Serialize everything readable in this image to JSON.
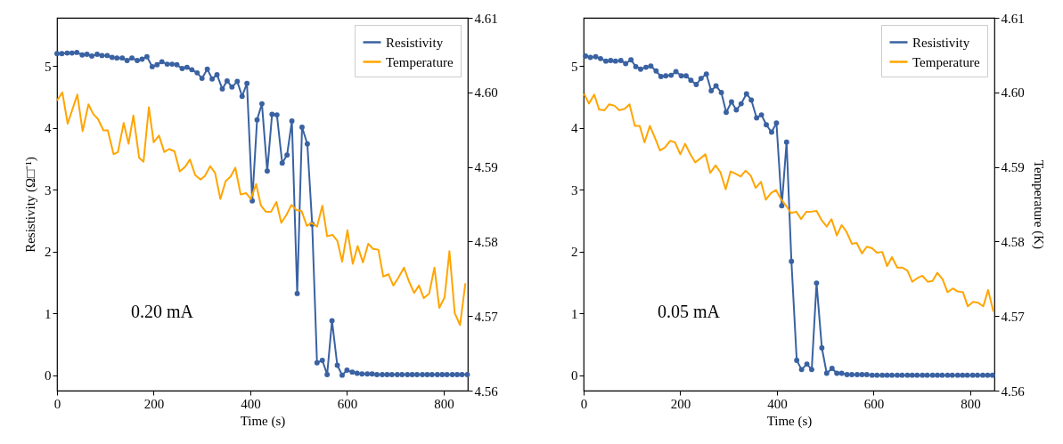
{
  "chart_data": [
    {
      "type": "line",
      "xlabel": "Time (s)",
      "ylabel": "Resistivity (Ω□⁻¹)",
      "annotations": [
        "0.20 mA"
      ],
      "legend": "top right",
      "grid": false,
      "xlim": [
        0,
        850
      ],
      "xticks": [
        0,
        200,
        400,
        600,
        800
      ],
      "ylim": [
        -0.25,
        5.78
      ],
      "yticks": [
        0,
        1,
        2,
        3,
        4,
        5
      ],
      "y2lim": [
        4.56,
        4.61
      ],
      "y2ticks": [
        4.56,
        4.57,
        4.58,
        4.59,
        {
          "value": 4.6,
          "label": "4.60"
        },
        4.61
      ],
      "line_style": "solid",
      "series": [
        {
          "name": "Resistivity",
          "color": "#3a62a2",
          "marker": "circle",
          "x": [
            0,
            10,
            21,
            31,
            41,
            52,
            62,
            72,
            83,
            93,
            104,
            114,
            124,
            135,
            145,
            155,
            166,
            176,
            186,
            197,
            207,
            217,
            228,
            238,
            248,
            259,
            269,
            279,
            290,
            300,
            311,
            321,
            331,
            342,
            352,
            362,
            373,
            383,
            393,
            404,
            414,
            424,
            435,
            445,
            455,
            466,
            476,
            486,
            497,
            507,
            518,
            528,
            538,
            549,
            559,
            569,
            580,
            590,
            600,
            611,
            621,
            631,
            642,
            652,
            662,
            673,
            683,
            693,
            704,
            714,
            725,
            735,
            745,
            756,
            766,
            776,
            787,
            797,
            807,
            818,
            828,
            838,
            849
          ],
          "values": [
            5.2,
            5.2,
            5.21,
            5.21,
            5.22,
            5.18,
            5.19,
            5.16,
            5.19,
            5.17,
            5.17,
            5.14,
            5.13,
            5.13,
            5.09,
            5.13,
            5.09,
            5.11,
            5.15,
            4.99,
            5.02,
            5.07,
            5.03,
            5.03,
            5.02,
            4.96,
            4.98,
            4.94,
            4.89,
            4.8,
            4.95,
            4.79,
            4.86,
            4.63,
            4.76,
            4.66,
            4.75,
            4.51,
            4.72,
            2.82,
            4.13,
            4.39,
            3.3,
            4.22,
            4.21,
            3.43,
            3.56,
            4.11,
            1.32,
            4.01,
            3.74,
            2.44,
            0.2,
            0.24,
            0.01,
            0.88,
            0.16,
            0.0,
            0.08,
            0.05,
            0.03,
            0.02,
            0.02,
            0.02,
            0.01,
            0.01,
            0.01,
            0.01,
            0.01,
            0.01,
            0.01,
            0.01,
            0.01,
            0.01,
            0.01,
            0.01,
            0.01,
            0.01,
            0.01,
            0.01,
            0.01,
            0.01,
            0.01
          ]
        },
        {
          "name": "Temperature",
          "color": "#ffa500",
          "marker": "none",
          "axis": "y2",
          "x": [
            0,
            11,
            22,
            42,
            53,
            65,
            75,
            85,
            96,
            105,
            117,
            126,
            138,
            148,
            158,
            170,
            179,
            190,
            200,
            211,
            222,
            232,
            243,
            254,
            265,
            275,
            286,
            297,
            306,
            317,
            327,
            338,
            349,
            359,
            369,
            380,
            391,
            401,
            412,
            422,
            432,
            443,
            454,
            464,
            475,
            485,
            496,
            506,
            517,
            527,
            538,
            549,
            559,
            570,
            580,
            590,
            601,
            612,
            622,
            633,
            644,
            654,
            665,
            675,
            686,
            696,
            706,
            718,
            728,
            739,
            749,
            759,
            770,
            781,
            791,
            802,
            812,
            823,
            834,
            845
          ],
          "values": [
            4.5989,
            4.6,
            4.5958,
            4.5997,
            4.5948,
            4.5984,
            4.5971,
            4.5964,
            4.5949,
            4.5949,
            4.5917,
            4.592,
            4.5959,
            4.5931,
            4.5969,
            4.5912,
            4.5907,
            4.598,
            4.5933,
            4.5942,
            4.592,
            4.5924,
            4.5921,
            4.5894,
            4.59,
            4.591,
            4.5889,
            4.5883,
            4.5888,
            4.5901,
            4.5892,
            4.5857,
            4.5881,
            4.5887,
            4.5899,
            4.5863,
            4.5865,
            4.5857,
            4.5877,
            4.5848,
            4.584,
            4.584,
            4.5853,
            4.5825,
            4.5836,
            4.5849,
            4.5842,
            4.5841,
            4.5821,
            4.5825,
            4.582,
            4.5848,
            4.5807,
            4.5809,
            4.5801,
            4.5773,
            4.5815,
            4.577,
            4.5794,
            4.5772,
            4.5797,
            4.579,
            4.5789,
            4.5753,
            4.5756,
            4.5741,
            4.5751,
            4.5765,
            4.5747,
            4.5731,
            4.5741,
            4.5724,
            4.573,
            4.5765,
            4.5711,
            4.5725,
            4.5787,
            4.5704,
            4.5688,
            4.5744
          ]
        }
      ]
    },
    {
      "type": "line",
      "xlabel": "Time (s)",
      "y2label": "Temperature (K)",
      "annotations": [
        "0.05 mA"
      ],
      "legend": "top right",
      "grid": false,
      "xlim": [
        0,
        850
      ],
      "xticks": [
        0,
        200,
        400,
        600,
        800
      ],
      "ylim": [
        -0.25,
        5.78
      ],
      "yticks": [
        0,
        1,
        2,
        3,
        4,
        5
      ],
      "y2lim": [
        4.56,
        4.61
      ],
      "y2ticks": [
        4.56,
        4.57,
        4.58,
        4.59,
        {
          "value": 4.6,
          "label": "4.60"
        },
        4.61
      ],
      "line_style": "solid",
      "series": [
        {
          "name": "Resistivity",
          "color": "#3a62a2",
          "marker": "circle",
          "x": [
            4,
            14,
            25,
            35,
            46,
            56,
            66,
            77,
            87,
            98,
            108,
            118,
            129,
            139,
            150,
            160,
            170,
            181,
            191,
            202,
            212,
            222,
            233,
            243,
            254,
            264,
            274,
            285,
            295,
            306,
            316,
            326,
            337,
            347,
            358,
            368,
            378,
            389,
            399,
            410,
            420,
            430,
            441,
            451,
            462,
            472,
            482,
            493,
            503,
            514,
            524,
            534,
            545,
            555,
            566,
            576,
            586,
            597,
            607,
            618,
            628,
            638,
            649,
            659,
            670,
            680,
            690,
            701,
            711,
            722,
            732,
            742,
            753,
            763,
            774,
            784,
            794,
            805,
            815,
            826,
            836,
            846
          ],
          "values": [
            5.16,
            5.14,
            5.15,
            5.12,
            5.08,
            5.09,
            5.08,
            5.09,
            5.04,
            5.1,
            4.99,
            4.95,
            4.98,
            5.0,
            4.92,
            4.83,
            4.84,
            4.85,
            4.91,
            4.84,
            4.84,
            4.77,
            4.7,
            4.8,
            4.87,
            4.6,
            4.68,
            4.57,
            4.25,
            4.42,
            4.29,
            4.39,
            4.55,
            4.45,
            4.16,
            4.21,
            4.05,
            3.93,
            4.08,
            2.74,
            3.77,
            1.84,
            0.24,
            0.09,
            0.18,
            0.09,
            1.49,
            0.44,
            0.03,
            0.11,
            0.03,
            0.03,
            0.01,
            0.01,
            0.01,
            0.01,
            0.01,
            0.0,
            0.0,
            0.0,
            0.0,
            0.0,
            0.0,
            0.0,
            0.0,
            0.0,
            0.0,
            0.0,
            0.0,
            0.0,
            0.0,
            0.0,
            0.0,
            0.0,
            0.0,
            0.0,
            0.0,
            0.0,
            0.0,
            0.0,
            0.0,
            0.0
          ]
        },
        {
          "name": "Temperature",
          "color": "#ffa500",
          "marker": "none",
          "axis": "y2",
          "x": [
            1,
            11,
            22,
            32,
            43,
            53,
            64,
            74,
            85,
            95,
            106,
            116,
            126,
            137,
            147,
            158,
            168,
            179,
            189,
            200,
            210,
            220,
            231,
            241,
            252,
            262,
            273,
            283,
            294,
            304,
            314,
            325,
            335,
            346,
            356,
            367,
            377,
            388,
            398,
            409,
            419,
            429,
            440,
            450,
            461,
            471,
            482,
            492,
            503,
            513,
            524,
            534,
            544,
            555,
            565,
            576,
            586,
            597,
            607,
            618,
            628,
            638,
            649,
            659,
            670,
            680,
            691,
            701,
            712,
            722,
            732,
            743,
            753,
            764,
            774,
            785,
            795,
            806,
            816,
            827,
            837,
            848
          ],
          "values": [
            4.5998,
            4.5985,
            4.5997,
            4.5977,
            4.5976,
            4.5984,
            4.5982,
            4.5976,
            4.5978,
            4.5984,
            4.5955,
            4.5955,
            4.5933,
            4.5955,
            4.594,
            4.5922,
            4.5926,
            4.5935,
            4.5933,
            4.5917,
            4.5931,
            4.5918,
            4.5906,
            4.5911,
            4.5917,
            4.5892,
            4.5902,
            4.5893,
            4.587,
            4.5894,
            4.5891,
            4.5887,
            4.5895,
            4.5888,
            4.5872,
            4.588,
            4.5856,
            4.5865,
            4.5869,
            4.5856,
            4.5848,
            4.5838,
            4.584,
            4.583,
            4.584,
            4.584,
            4.5841,
            4.5829,
            4.582,
            4.583,
            4.5808,
            4.5822,
            4.5813,
            4.5797,
            4.5798,
            4.5784,
            4.5793,
            4.5791,
            4.5785,
            4.5786,
            4.5767,
            4.5779,
            4.5765,
            4.5765,
            4.5761,
            4.5746,
            4.5751,
            4.5754,
            4.5746,
            4.5747,
            4.5758,
            4.5749,
            4.5732,
            4.5737,
            4.5733,
            4.5732,
            4.5713,
            4.5719,
            4.5718,
            4.5713,
            4.5735,
            4.5706
          ]
        }
      ]
    }
  ]
}
